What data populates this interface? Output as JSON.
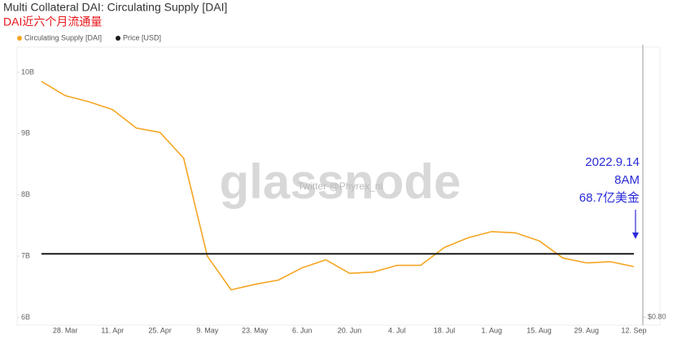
{
  "chart_data": {
    "type": "line",
    "title": "Multi Collateral DAI: Circulating Supply [DAI]",
    "subtitle": "DAI近六个月流通量",
    "categories": [
      null,
      "28. Mar",
      null,
      "11. Apr",
      null,
      "25. Apr",
      null,
      "9. May",
      null,
      "23. May",
      null,
      "6. Jun",
      null,
      "20. Jun",
      null,
      "4. Jul",
      null,
      "18. Jul",
      null,
      "1. Aug",
      null,
      "15. Aug",
      null,
      "29. Aug",
      null,
      "12. Sep"
    ],
    "series": [
      {
        "name": "Circulating Supply [DAI]",
        "color": "#f5a623",
        "values": [
          9.85,
          9.62,
          9.52,
          9.39,
          9.09,
          9.02,
          8.6,
          7.0,
          6.45,
          6.54,
          6.61,
          6.81,
          6.94,
          6.72,
          6.74,
          6.85,
          6.85,
          7.14,
          7.3,
          7.4,
          7.38,
          7.25,
          6.97,
          6.89,
          6.91,
          6.83
        ]
      },
      {
        "name": "Price [USD]",
        "color": "#1a1a1a",
        "axis": "y2",
        "values": [
          1.0,
          1.0,
          1.0,
          1.0,
          1.0,
          1.0,
          1.0,
          1.0,
          1.0,
          1.0,
          1.0,
          1.0,
          1.0,
          1.0,
          1.0,
          1.0,
          1.0,
          1.0,
          1.0,
          1.0,
          1.0,
          1.0,
          1.0,
          1.0,
          1.0,
          1.0
        ]
      }
    ],
    "ylim": [
      5.9,
      10.45
    ],
    "yticks": [
      {
        "value": 6,
        "label": "6B"
      },
      {
        "value": 7,
        "label": "7B"
      },
      {
        "value": 8,
        "label": "8B"
      },
      {
        "value": 9,
        "label": "9B"
      },
      {
        "value": 10,
        "label": "10B"
      }
    ],
    "y2lim": [
      0.78,
      1.66
    ],
    "y2ticks": [
      {
        "value": 0.8,
        "label": "$0.80"
      }
    ],
    "grid": false,
    "legend": "top-left",
    "annotations": [
      "2022.9.14",
      "8AM",
      "68.7亿美金"
    ],
    "watermark": "glassnode",
    "watermark_note": "Twitter @Phyrex_ni"
  }
}
